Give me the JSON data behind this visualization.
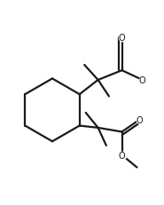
{
  "background": "#ffffff",
  "line_color": "#1a1a1a",
  "line_width": 1.6,
  "figsize": [
    1.85,
    2.32
  ],
  "dpi": 100,
  "xlim": [
    0,
    185
  ],
  "ylim": [
    0,
    232
  ]
}
